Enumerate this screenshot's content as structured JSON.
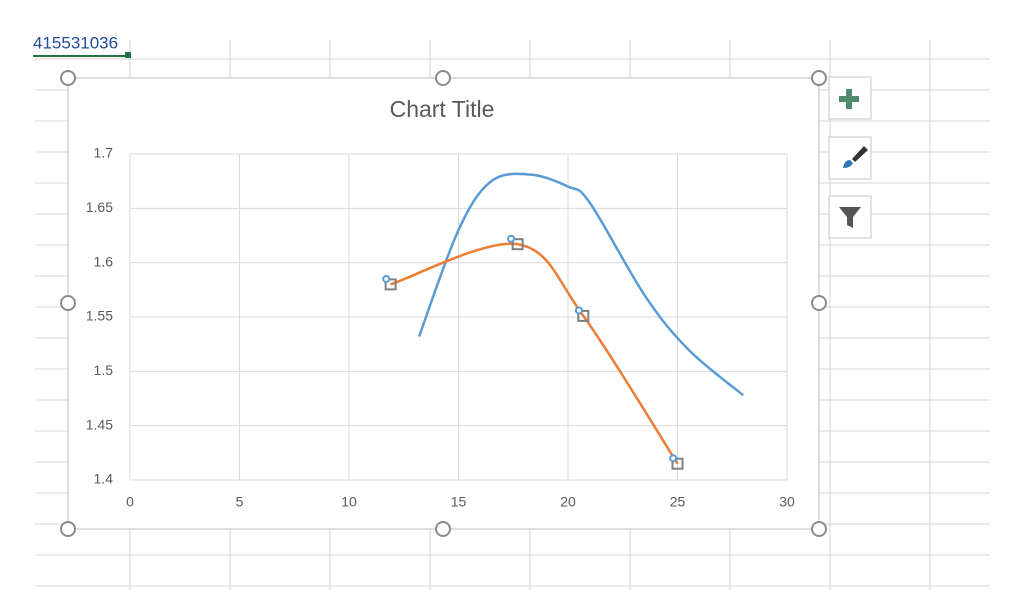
{
  "cell_text": "415531036",
  "chart_data": {
    "type": "scatter",
    "title": "Chart Title",
    "xlim": [
      0,
      30
    ],
    "xticks": [
      0,
      5,
      10,
      15,
      20,
      25,
      30
    ],
    "ylim": [
      1.4,
      1.7
    ],
    "yticks": [
      1.4,
      1.45,
      1.5,
      1.55,
      1.6,
      1.65,
      1.7
    ],
    "grid": true,
    "smooth": true,
    "series": [
      {
        "color": "#5b9bd5",
        "line": true,
        "marker": "none",
        "x": [
          13.2,
          15,
          16.5,
          18.3,
          20,
          21,
          23.5,
          25.5,
          28
        ],
        "values": [
          1.532,
          1.63,
          1.675,
          1.681,
          1.67,
          1.655,
          1.57,
          1.52,
          1.478
        ]
      },
      {
        "color": "#ed7d31",
        "line": true,
        "marker": "square",
        "x": [
          11.9,
          17.7,
          20.7,
          25
        ],
        "values": [
          1.58,
          1.617,
          1.551,
          1.415
        ]
      },
      {
        "color": "#5b9bd5",
        "line": false,
        "marker": "circle",
        "x": [
          11.7,
          17.4,
          20.5,
          24.8
        ],
        "values": [
          1.585,
          1.622,
          1.556,
          1.42
        ]
      }
    ]
  }
}
